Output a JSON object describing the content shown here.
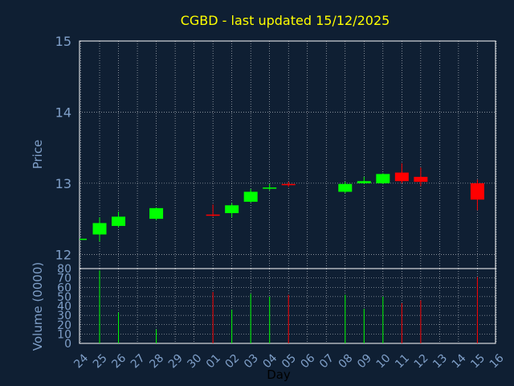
{
  "colors": {
    "background": "#0f1f33",
    "plot_border": "#ffffff",
    "grid": "#ffffff",
    "tick_text": "#7f9fc8",
    "title": "#ffff00",
    "up": "#00ff00",
    "down": "#ff0000",
    "xlabel": "#000000"
  },
  "chart_data": [
    {
      "type": "candlestick",
      "title": "CGBD - last updated 15/12/2025",
      "ylabel": "Price",
      "ylim": [
        11.8,
        15
      ],
      "yticks": [
        "12",
        "13",
        "14",
        "15"
      ],
      "grid": true,
      "x": [
        "24",
        "25",
        "26",
        "27",
        "28",
        "29",
        "30",
        "01",
        "02",
        "03",
        "04",
        "05",
        "06",
        "07",
        "08",
        "09",
        "10",
        "11",
        "12",
        "13",
        "14",
        "15",
        "16"
      ],
      "candles": [
        {
          "day": "24",
          "open": 12.21,
          "high": 12.22,
          "low": 12.21,
          "close": 12.22
        },
        {
          "day": "25",
          "open": 12.28,
          "high": 12.52,
          "low": 12.18,
          "close": 12.44
        },
        {
          "day": "26",
          "open": 12.4,
          "high": 12.6,
          "low": 12.38,
          "close": 12.53
        },
        {
          "day": "28",
          "open": 12.5,
          "high": 12.66,
          "low": 12.48,
          "close": 12.65
        },
        {
          "day": "01",
          "open": 12.56,
          "high": 12.7,
          "low": 12.53,
          "close": 12.55
        },
        {
          "day": "02",
          "open": 12.58,
          "high": 12.72,
          "low": 12.52,
          "close": 12.69
        },
        {
          "day": "03",
          "open": 12.74,
          "high": 12.92,
          "low": 12.73,
          "close": 12.88
        },
        {
          "day": "04",
          "open": 12.93,
          "high": 12.99,
          "low": 12.9,
          "close": 12.94
        },
        {
          "day": "05",
          "open": 12.99,
          "high": 13.02,
          "low": 12.95,
          "close": 12.98
        },
        {
          "day": "08",
          "open": 12.88,
          "high": 13.02,
          "low": 12.86,
          "close": 12.99
        },
        {
          "day": "09",
          "open": 13.0,
          "high": 13.09,
          "low": 12.99,
          "close": 13.03
        },
        {
          "day": "10",
          "open": 13.0,
          "high": 13.14,
          "low": 12.99,
          "close": 13.13
        },
        {
          "day": "11",
          "open": 13.15,
          "high": 13.28,
          "low": 13.0,
          "close": 13.03
        },
        {
          "day": "12",
          "open": 13.09,
          "high": 13.22,
          "low": 12.96,
          "close": 13.02
        },
        {
          "day": "15",
          "open": 13.0,
          "high": 13.05,
          "low": 12.62,
          "close": 12.77
        }
      ]
    },
    {
      "type": "bar",
      "ylabel": "Volume (0000)",
      "xlabel": "Day",
      "ylim": [
        0,
        80
      ],
      "yticks": [
        "0",
        "10",
        "20",
        "30",
        "40",
        "50",
        "60",
        "70",
        "80"
      ],
      "grid": true,
      "categories": [
        "24",
        "25",
        "26",
        "27",
        "28",
        "29",
        "30",
        "01",
        "02",
        "03",
        "04",
        "05",
        "06",
        "07",
        "08",
        "09",
        "10",
        "11",
        "12",
        "13",
        "14",
        "15",
        "16"
      ],
      "values": [
        {
          "day": "25",
          "value": 78,
          "color": "up"
        },
        {
          "day": "26",
          "value": 33,
          "color": "up"
        },
        {
          "day": "28",
          "value": 15,
          "color": "up"
        },
        {
          "day": "01",
          "value": 55,
          "color": "down"
        },
        {
          "day": "02",
          "value": 36,
          "color": "up"
        },
        {
          "day": "03",
          "value": 53,
          "color": "up"
        },
        {
          "day": "04",
          "value": 50,
          "color": "up"
        },
        {
          "day": "05",
          "value": 52,
          "color": "down"
        },
        {
          "day": "08",
          "value": 52,
          "color": "up"
        },
        {
          "day": "09",
          "value": 37,
          "color": "up"
        },
        {
          "day": "10",
          "value": 50,
          "color": "up"
        },
        {
          "day": "11",
          "value": 43,
          "color": "down"
        },
        {
          "day": "12",
          "value": 46,
          "color": "down"
        },
        {
          "day": "15",
          "value": 71,
          "color": "down"
        }
      ]
    }
  ]
}
